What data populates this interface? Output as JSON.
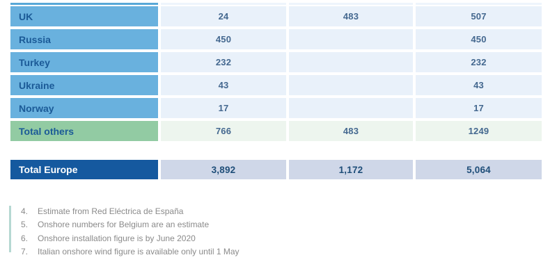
{
  "table": {
    "rows": [
      {
        "label": "UK",
        "onshore": "24",
        "offshore": "483",
        "total": "507"
      },
      {
        "label": "Russia",
        "onshore": "450",
        "offshore": "",
        "total": "450"
      },
      {
        "label": "Turkey",
        "onshore": "232",
        "offshore": "",
        "total": "232"
      },
      {
        "label": "Ukraine",
        "onshore": "43",
        "offshore": "",
        "total": "43"
      },
      {
        "label": "Norway",
        "onshore": "17",
        "offshore": "",
        "total": "17"
      },
      {
        "label": "Total others",
        "onshore": "766",
        "offshore": "483",
        "total": "1249"
      }
    ],
    "total_row": {
      "label": "Total Europe",
      "onshore": "3,892",
      "offshore": "1,172",
      "total": "5,064"
    }
  },
  "footnotes": [
    {
      "num": "4.",
      "text": "Estimate from Red Eléctrica de España"
    },
    {
      "num": "5.",
      "text": "Onshore numbers for Belgium are an estimate"
    },
    {
      "num": "6.",
      "text": "Onshore installation figure is by June 2020"
    },
    {
      "num": "7.",
      "text": "Italian onshore wind figure is available only until 1 May"
    }
  ],
  "colors": {
    "country_label_bg": "#69b1de",
    "country_label_text": "#1b5a97",
    "data_cell_bg": "#e9f1fa",
    "data_text": "#44688f",
    "subtotal_label_bg": "#92cba3",
    "subtotal_cell_bg": "#edf5ee",
    "total_europe_label_bg": "#15599f",
    "total_europe_label_text": "#ffffff",
    "total_europe_cell_bg": "#cfd7e8",
    "footnote_text": "#8a8a8a",
    "footnote_accent_bar": "#b5d8d2"
  }
}
